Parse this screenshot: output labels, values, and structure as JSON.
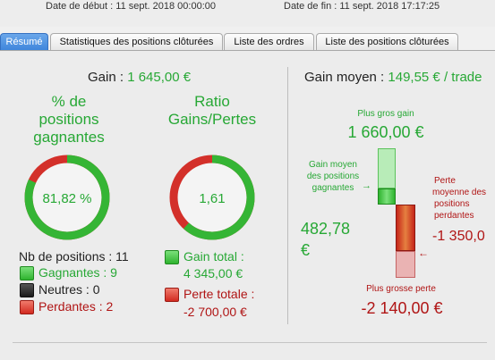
{
  "header": {
    "start_date": "Date de début : 11 sept. 2018 00:00:00",
    "end_date": "Date de fin : 11 sept. 2018 17:17:25"
  },
  "tabs": [
    {
      "label": "Résumé",
      "active": true
    },
    {
      "label": "Statistiques des positions clôturées",
      "active": false
    },
    {
      "label": "Liste des ordres",
      "active": false
    },
    {
      "label": "Liste des positions clôturées",
      "active": false
    }
  ],
  "summary": {
    "gain_label": "Gain : ",
    "gain_value": "1 645,00 €",
    "pct_title_lines": [
      "% de",
      "positions",
      "gagnantes"
    ],
    "pct_value": "81,82 %",
    "pct_fraction": 0.8182,
    "ratio_title_lines": [
      "Ratio",
      "Gains/Pertes"
    ],
    "ratio_value": "1,61",
    "ratio_gain_fraction": 0.617,
    "nb_positions": "Nb de positions : 11",
    "gagnantes": "Gagnantes : 9",
    "neutres": "Neutres : 0",
    "perdantes": "Perdantes : 2",
    "gain_total_label": "Gain total :",
    "gain_total_value": "4 345,00 €",
    "perte_totale_label": "Perte totale :",
    "perte_totale_value": "-2 700,00 €"
  },
  "right": {
    "title": "Gain moyen : ",
    "title_value": "149,55 € / trade",
    "plus_gros_gain_label": "Plus gros gain",
    "plus_gros_gain_value": "1 660,00 €",
    "gain_moyen_lines": [
      "Gain moyen",
      "des positions",
      "gagnantes"
    ],
    "gain_moyen_value_line1": "482,78",
    "gain_moyen_value_line2": "€",
    "perte_moyenne_lines": [
      "Perte",
      "moyenne des",
      "positions",
      "perdantes"
    ],
    "perte_moyenne_value": "-1 350,0",
    "plus_grosse_perte_label": "Plus grosse perte",
    "plus_grosse_perte_value": "-2 140,00 €"
  },
  "colors": {
    "green": "#27a835",
    "red": "#d3302a",
    "darkred": "#b01515",
    "tab_active": "#3f86dc"
  }
}
